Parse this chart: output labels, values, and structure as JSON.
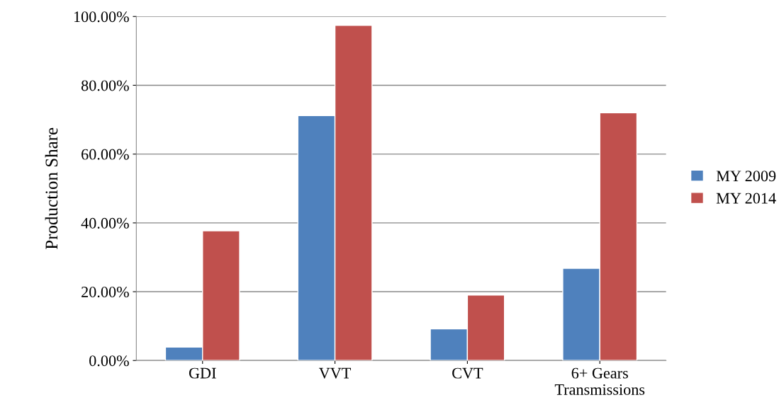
{
  "chart_data": {
    "type": "bar",
    "ylabel": "Production Share",
    "categories": [
      "GDI",
      "VVT",
      "CVT",
      "6+ Gears\nTransmissions"
    ],
    "series": [
      {
        "name": "MY 2009",
        "color": "#4f81bd",
        "values": [
          3.9,
          71.2,
          9.2,
          26.8
        ]
      },
      {
        "name": "MY 2014",
        "color": "#c0504d",
        "values": [
          37.7,
          97.4,
          19.0,
          72.0
        ]
      }
    ],
    "ylim": [
      0,
      100
    ],
    "yticks": [
      {
        "value": 0,
        "label": "0.00%"
      },
      {
        "value": 20,
        "label": "20.00%"
      },
      {
        "value": 40,
        "label": "40.00%"
      },
      {
        "value": 60,
        "label": "60.00%"
      },
      {
        "value": 80,
        "label": "80.00%"
      },
      {
        "value": 100,
        "label": "100.00%"
      }
    ],
    "grid": "y",
    "legend": "right"
  }
}
